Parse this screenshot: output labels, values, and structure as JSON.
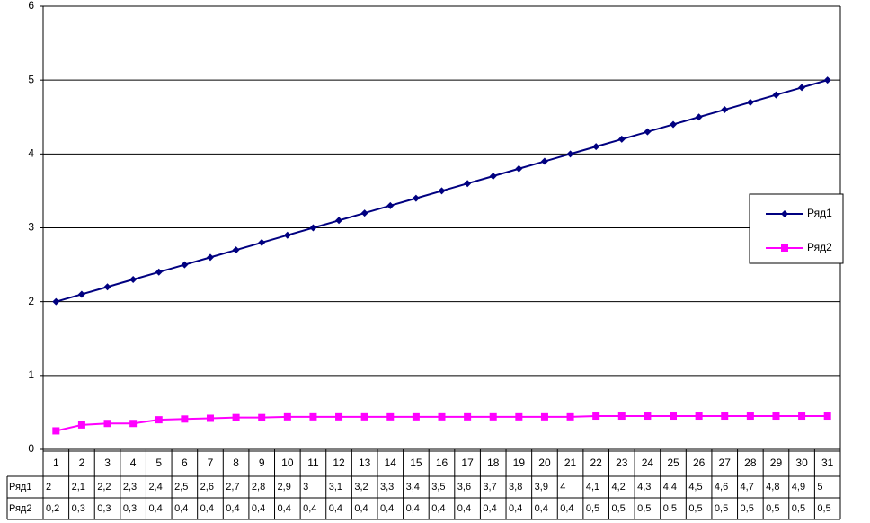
{
  "chart_data": {
    "type": "line",
    "categories": [
      "1",
      "2",
      "3",
      "4",
      "5",
      "6",
      "7",
      "8",
      "9",
      "10",
      "11",
      "12",
      "13",
      "14",
      "15",
      "16",
      "17",
      "18",
      "19",
      "20",
      "21",
      "22",
      "23",
      "24",
      "25",
      "26",
      "27",
      "28",
      "29",
      "30",
      "31"
    ],
    "series": [
      {
        "name": "Ряд1",
        "color": "#000080",
        "marker": "diamond",
        "values": [
          2,
          2.1,
          2.2,
          2.3,
          2.4,
          2.5,
          2.6,
          2.7,
          2.8,
          2.9,
          3,
          3.1,
          3.2,
          3.3,
          3.4,
          3.5,
          3.6,
          3.7,
          3.8,
          3.9,
          4,
          4.1,
          4.2,
          4.3,
          4.4,
          4.5,
          4.6,
          4.7,
          4.8,
          4.9,
          5
        ],
        "value_labels": [
          "2",
          "2,1",
          "2,2",
          "2,3",
          "2,4",
          "2,5",
          "2,6",
          "2,7",
          "2,8",
          "2,9",
          "3",
          "3,1",
          "3,2",
          "3,3",
          "3,4",
          "3,5",
          "3,6",
          "3,7",
          "3,8",
          "3,9",
          "4",
          "4,1",
          "4,2",
          "4,3",
          "4,4",
          "4,5",
          "4,6",
          "4,7",
          "4,8",
          "4,9",
          "5"
        ]
      },
      {
        "name": "Ряд2",
        "color": "#ff00ff",
        "marker": "square",
        "values": [
          0.25,
          0.33,
          0.35,
          0.35,
          0.4,
          0.41,
          0.42,
          0.43,
          0.43,
          0.44,
          0.44,
          0.44,
          0.44,
          0.44,
          0.44,
          0.44,
          0.44,
          0.44,
          0.44,
          0.44,
          0.44,
          0.45,
          0.45,
          0.45,
          0.45,
          0.45,
          0.45,
          0.45,
          0.45,
          0.45,
          0.45
        ],
        "value_labels": [
          "0,2",
          "0,3",
          "0,3",
          "0,3",
          "0,4",
          "0,4",
          "0,4",
          "0,4",
          "0,4",
          "0,4",
          "0,4",
          "0,4",
          "0,4",
          "0,4",
          "0,4",
          "0,4",
          "0,4",
          "0,4",
          "0,4",
          "0,4",
          "0,4",
          "0,5",
          "0,5",
          "0,5",
          "0,5",
          "0,5",
          "0,5",
          "0,5",
          "0,5",
          "0,5",
          "0,5"
        ]
      }
    ],
    "ylim": [
      0,
      6
    ],
    "yticks": [
      0,
      1,
      2,
      3,
      4,
      5,
      6
    ],
    "grid": true,
    "legend": "right"
  }
}
